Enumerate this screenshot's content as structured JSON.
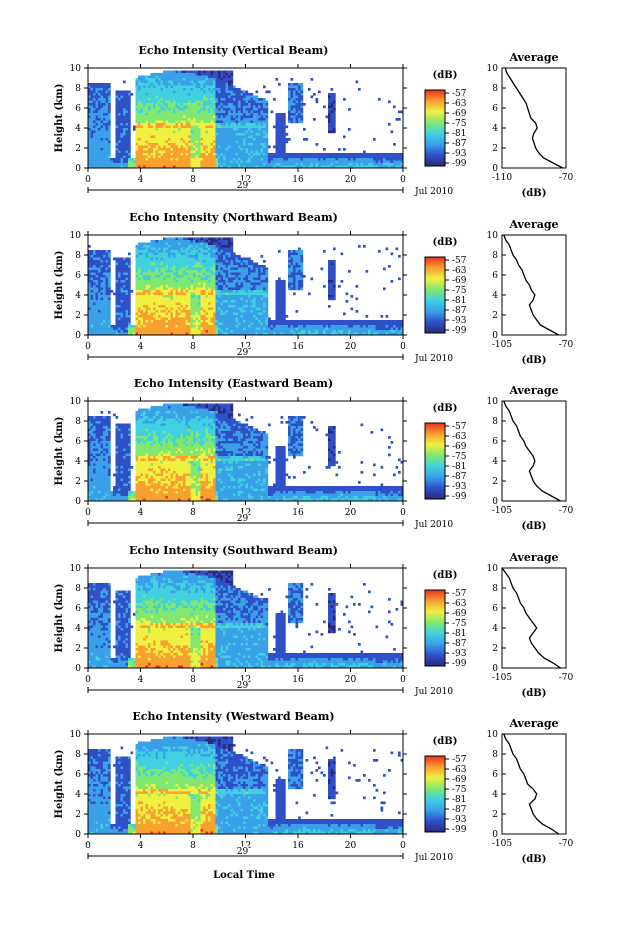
{
  "figure": {
    "x_axis_label": "Local Time",
    "date_label": "Jul 2010",
    "day_label": "29",
    "colorbar_unit": "(dB)",
    "colorbar_ticks": [
      "-57",
      "-63",
      "-69",
      "-75",
      "-81",
      "-87",
      "-93",
      "-99"
    ],
    "avg_xlabel": "(dB)",
    "avg_title": "Average",
    "height_label": "Height (km)",
    "colors": {
      "colormap": [
        "#2a2a7a",
        "#3050c8",
        "#3aa0e8",
        "#40d0e0",
        "#80e870",
        "#f0f040",
        "#f8a030",
        "#e83020"
      ]
    }
  },
  "chart_data": [
    {
      "type": "heatmap",
      "title": "Echo Intensity (Vertical Beam)",
      "xlabel": "",
      "ylabel": "Height (km)",
      "x_ticks": [
        "0",
        "4",
        "8",
        "12",
        "16",
        "20",
        "0"
      ],
      "y_ticks": [
        "0",
        "2",
        "4",
        "6",
        "8",
        "10"
      ],
      "xlim": [
        0,
        24
      ],
      "ylim": [
        0,
        10
      ],
      "day_label": "29",
      "date_label": "Jul 2010",
      "colorbar": {
        "unit": "(dB)",
        "ticks": [
          -57,
          -63,
          -69,
          -75,
          -81,
          -87,
          -93,
          -99
        ]
      },
      "average_profile": {
        "title": "Average",
        "xlabel": "(dB)",
        "x_ticks": [
          "-110",
          "-70"
        ],
        "xlim": [
          -110,
          -70
        ],
        "ylim": [
          0,
          10
        ],
        "height_km": [
          0,
          0.5,
          1,
          1.5,
          2,
          2.5,
          3,
          3.5,
          4,
          4.5,
          5,
          5.5,
          6,
          6.5,
          7,
          7.5,
          8,
          8.5,
          9,
          9.5,
          10
        ],
        "db": [
          -72,
          -78,
          -84,
          -87,
          -89,
          -90,
          -91,
          -90,
          -88,
          -89,
          -92,
          -93,
          -94,
          -95,
          -97,
          -99,
          -101,
          -103,
          -105,
          -107,
          -108
        ]
      }
    },
    {
      "type": "heatmap",
      "title": "Echo Intensity (Northward Beam)",
      "xlabel": "",
      "ylabel": "Height (km)",
      "x_ticks": [
        "0",
        "4",
        "8",
        "12",
        "16",
        "20",
        "0"
      ],
      "y_ticks": [
        "0",
        "2",
        "4",
        "6",
        "8",
        "10"
      ],
      "xlim": [
        0,
        24
      ],
      "ylim": [
        0,
        10
      ],
      "day_label": "29",
      "date_label": "Jul 2010",
      "colorbar": {
        "unit": "(dB)",
        "ticks": [
          -57,
          -63,
          -69,
          -75,
          -81,
          -87,
          -93,
          -99
        ]
      },
      "average_profile": {
        "title": "Average",
        "xlabel": "(dB)",
        "x_ticks": [
          "-105",
          "-70"
        ],
        "xlim": [
          -105,
          -70
        ],
        "ylim": [
          0,
          10
        ],
        "height_km": [
          0,
          0.5,
          1,
          1.5,
          2,
          2.5,
          3,
          3.5,
          4,
          4.5,
          5,
          5.5,
          6,
          6.5,
          7,
          7.5,
          8,
          8.5,
          9,
          9.5,
          10
        ],
        "db": [
          -74,
          -79,
          -84,
          -86,
          -88,
          -89,
          -90,
          -88,
          -87,
          -89,
          -90,
          -92,
          -93,
          -94,
          -96,
          -97,
          -99,
          -100,
          -101,
          -103,
          -104
        ]
      }
    },
    {
      "type": "heatmap",
      "title": "Echo Intensity (Eastward Beam)",
      "xlabel": "",
      "ylabel": "Height (km)",
      "x_ticks": [
        "0",
        "4",
        "8",
        "12",
        "16",
        "20",
        "0"
      ],
      "y_ticks": [
        "0",
        "2",
        "4",
        "6",
        "8",
        "10"
      ],
      "xlim": [
        0,
        24
      ],
      "ylim": [
        0,
        10
      ],
      "day_label": "29",
      "date_label": "Jul 2010",
      "colorbar": {
        "unit": "(dB)",
        "ticks": [
          -57,
          -63,
          -69,
          -75,
          -81,
          -87,
          -93,
          -99
        ]
      },
      "average_profile": {
        "title": "Average",
        "xlabel": "(dB)",
        "x_ticks": [
          "-105",
          "-70"
        ],
        "xlim": [
          -105,
          -70
        ],
        "ylim": [
          0,
          10
        ],
        "height_km": [
          0,
          0.5,
          1,
          1.5,
          2,
          2.5,
          3,
          3.5,
          4,
          4.5,
          5,
          5.5,
          6,
          6.5,
          7,
          7.5,
          8,
          8.5,
          9,
          9.5,
          10
        ],
        "db": [
          -73,
          -78,
          -83,
          -86,
          -88,
          -89,
          -90,
          -88,
          -87,
          -88,
          -90,
          -92,
          -93,
          -95,
          -96,
          -97,
          -99,
          -100,
          -101,
          -103,
          -104
        ]
      }
    },
    {
      "type": "heatmap",
      "title": "Echo Intensity (Southward Beam)",
      "xlabel": "",
      "ylabel": "Height (km)",
      "x_ticks": [
        "0",
        "4",
        "8",
        "12",
        "16",
        "20",
        "0"
      ],
      "y_ticks": [
        "0",
        "2",
        "4",
        "6",
        "8",
        "10"
      ],
      "xlim": [
        0,
        24
      ],
      "ylim": [
        0,
        10
      ],
      "day_label": "29",
      "date_label": "Jul 2010",
      "colorbar": {
        "unit": "(dB)",
        "ticks": [
          -57,
          -63,
          -69,
          -75,
          -81,
          -87,
          -93,
          -99
        ]
      },
      "average_profile": {
        "title": "Average",
        "xlabel": "(dB)",
        "x_ticks": [
          "-105",
          "-70"
        ],
        "xlim": [
          -105,
          -70
        ],
        "ylim": [
          0,
          10
        ],
        "height_km": [
          0,
          0.5,
          1,
          1.5,
          2,
          2.5,
          3,
          3.5,
          4,
          4.5,
          5,
          5.5,
          6,
          6.5,
          7,
          7.5,
          8,
          8.5,
          9,
          9.5,
          10
        ],
        "db": [
          -73,
          -77,
          -82,
          -85,
          -87,
          -89,
          -90,
          -88,
          -86,
          -88,
          -90,
          -92,
          -93,
          -95,
          -96,
          -97,
          -99,
          -100,
          -101,
          -103,
          -105
        ]
      }
    },
    {
      "type": "heatmap",
      "title": "Echo Intensity (Westward Beam)",
      "xlabel": "Local Time",
      "ylabel": "Height (km)",
      "x_ticks": [
        "0",
        "4",
        "8",
        "12",
        "16",
        "20",
        "0"
      ],
      "y_ticks": [
        "0",
        "2",
        "4",
        "6",
        "8",
        "10"
      ],
      "xlim": [
        0,
        24
      ],
      "ylim": [
        0,
        10
      ],
      "day_label": "29",
      "date_label": "Jul 2010",
      "colorbar": {
        "unit": "(dB)",
        "ticks": [
          -57,
          -63,
          -69,
          -75,
          -81,
          -87,
          -93,
          -99
        ]
      },
      "average_profile": {
        "title": "Average",
        "xlabel": "(dB)",
        "x_ticks": [
          "-105",
          "-70"
        ],
        "xlim": [
          -105,
          -70
        ],
        "ylim": [
          0,
          10
        ],
        "height_km": [
          0,
          0.5,
          1,
          1.5,
          2,
          2.5,
          3,
          3.5,
          4,
          4.5,
          5,
          5.5,
          6,
          6.5,
          7,
          7.5,
          8,
          8.5,
          9,
          9.5,
          10
        ],
        "db": [
          -74,
          -78,
          -83,
          -86,
          -88,
          -89,
          -90,
          -87,
          -86,
          -88,
          -91,
          -92,
          -93,
          -95,
          -96,
          -97,
          -99,
          -100,
          -101,
          -103,
          -104
        ]
      }
    }
  ]
}
